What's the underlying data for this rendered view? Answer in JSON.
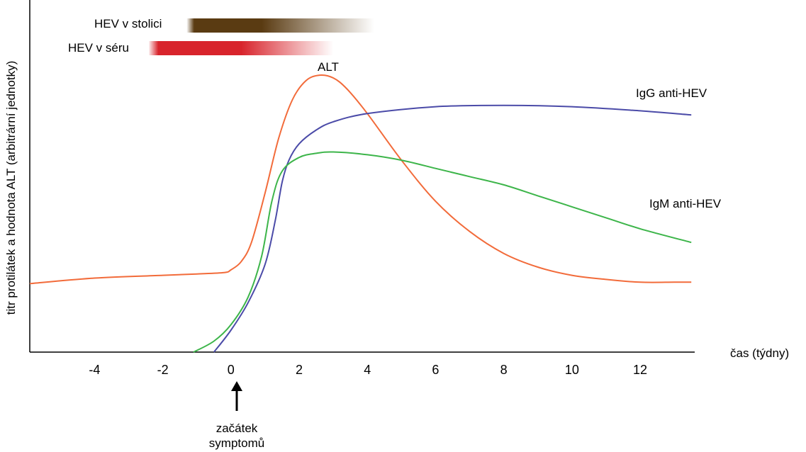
{
  "chart_data": {
    "type": "line",
    "title": "",
    "xlabel": "čas (týdny)",
    "ylabel": "titr protilátek a hodnota ALT (arbitrární jednotky)",
    "xlim": [
      -5.9,
      13.6
    ],
    "ylim": [
      0,
      100
    ],
    "x_ticks": [
      "-4",
      "-2",
      "0",
      "2",
      "4",
      "6",
      "8",
      "10",
      "12"
    ],
    "grid": false,
    "legend": "none",
    "series": [
      {
        "name": "ALT",
        "color": "#F26B3A",
        "x": [
          -5.9,
          -4,
          -2,
          -1,
          -0.2,
          0,
          0.3,
          0.6,
          1.0,
          1.4,
          1.8,
          2.2,
          2.6,
          3.0,
          3.4,
          4.0,
          5.0,
          6.0,
          7.0,
          8.0,
          9.0,
          10.0,
          11.0,
          12.0,
          13.0,
          13.5
        ],
        "y": [
          25,
          27,
          28,
          28.5,
          29,
          30,
          33,
          40,
          58,
          78,
          92,
          99,
          101,
          100,
          96,
          87,
          70,
          55,
          44,
          36,
          31,
          28,
          26.5,
          25.5,
          25.5,
          25.5
        ]
      },
      {
        "name": "IgG anti-HEV",
        "color": "#4B4BA8",
        "x": [
          -0.5,
          0,
          0.5,
          1.0,
          1.3,
          1.5,
          1.7,
          2.0,
          2.5,
          3.0,
          4.0,
          6.0,
          8.0,
          10.0,
          12.0,
          13.5
        ],
        "y": [
          0,
          8,
          18,
          32,
          48,
          62,
          70,
          76,
          81,
          84,
          87,
          89.5,
          90,
          89.5,
          88,
          86.5
        ]
      },
      {
        "name": "IgM anti-HEV",
        "color": "#3DB54A",
        "x": [
          -1.1,
          -0.5,
          0,
          0.5,
          0.9,
          1.2,
          1.5,
          2.0,
          2.5,
          3.0,
          4.0,
          5.0,
          6.0,
          7.0,
          8.0,
          9.0,
          10.0,
          11.0,
          12.0,
          13.5
        ],
        "y": [
          0,
          4,
          10,
          20,
          35,
          55,
          66,
          71,
          72.5,
          73,
          72,
          70,
          67,
          64,
          61,
          57,
          53,
          49,
          45,
          40
        ]
      }
    ],
    "bands": [
      {
        "label": "HEV v stolici",
        "color": "#5A3B12",
        "start": -1.3,
        "end": 4.2
      },
      {
        "label": "HEV v séru",
        "color": "#D8242C",
        "start": -2.4,
        "end": 3.0
      }
    ],
    "annotations": [
      {
        "text": "ALT",
        "x": 2.8
      },
      {
        "text": "IgG anti-HEV"
      },
      {
        "text": "IgM anti-HEV"
      }
    ],
    "marker": {
      "x": 0,
      "label_line1": "začátek",
      "label_line2": "symptomů"
    }
  }
}
